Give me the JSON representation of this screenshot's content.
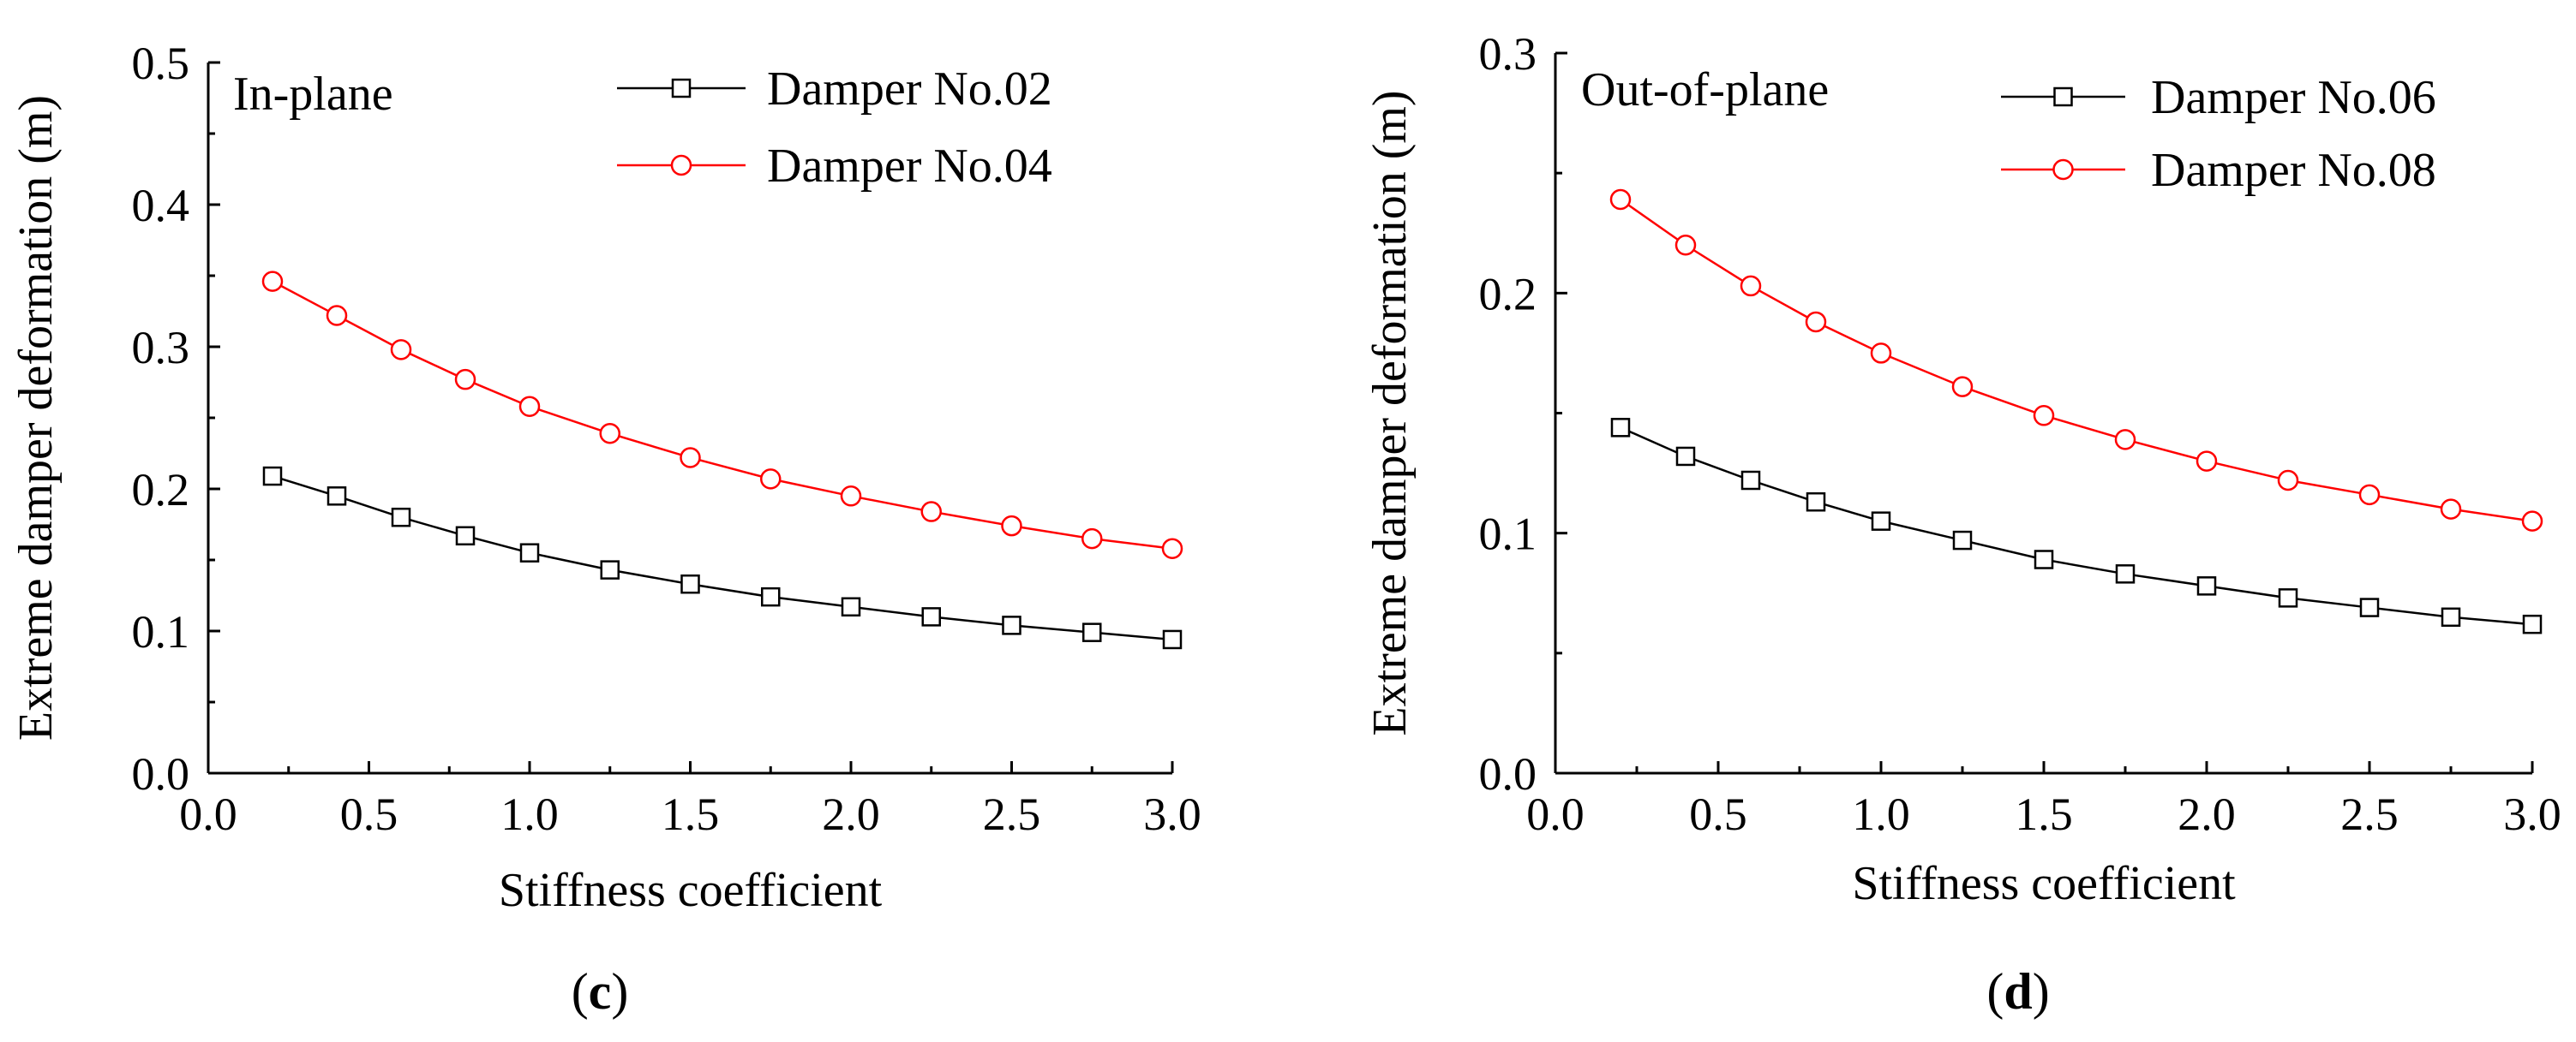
{
  "chart_data": [
    {
      "type": "line",
      "panel_label": "c",
      "title": "",
      "annotation": "In-plane",
      "xlabel": "Stiffness coefficient",
      "ylabel": "Extreme damper deformation (m)",
      "xlim": [
        0.0,
        3.0
      ],
      "ylim": [
        0.0,
        0.5
      ],
      "xticks": [
        "0.0",
        "0.5",
        "1.0",
        "1.5",
        "2.0",
        "2.5",
        "3.0"
      ],
      "yticks": [
        "0.0",
        "0.1",
        "0.2",
        "0.3",
        "0.4",
        "0.5"
      ],
      "grid": false,
      "legend_position": "top-right",
      "x": [
        0.2,
        0.4,
        0.6,
        0.8,
        1.0,
        1.25,
        1.5,
        1.75,
        2.0,
        2.25,
        2.5,
        2.75,
        3.0
      ],
      "series": [
        {
          "name": "Damper No.02",
          "color": "#000000",
          "marker": "square",
          "values": [
            0.209,
            0.195,
            0.18,
            0.167,
            0.155,
            0.143,
            0.133,
            0.124,
            0.117,
            0.11,
            0.104,
            0.099,
            0.094
          ]
        },
        {
          "name": "Damper No.04",
          "color": "#ff0000",
          "marker": "circle",
          "values": [
            0.346,
            0.322,
            0.298,
            0.277,
            0.258,
            0.239,
            0.222,
            0.207,
            0.195,
            0.184,
            0.174,
            0.165,
            0.158
          ]
        }
      ]
    },
    {
      "type": "line",
      "panel_label": "d",
      "title": "",
      "annotation": "Out-of-plane",
      "xlabel": "Stiffness coefficient",
      "ylabel": "Extreme damper deformation (m)",
      "xlim": [
        0.0,
        3.0
      ],
      "ylim": [
        0.0,
        0.3
      ],
      "xticks": [
        "0.0",
        "0.5",
        "1.0",
        "1.5",
        "2.0",
        "2.5",
        "3.0"
      ],
      "yticks": [
        "0.0",
        "0.1",
        "0.2",
        "0.3"
      ],
      "grid": false,
      "legend_position": "top-right",
      "x": [
        0.2,
        0.4,
        0.6,
        0.8,
        1.0,
        1.25,
        1.5,
        1.75,
        2.0,
        2.25,
        2.5,
        2.75,
        3.0
      ],
      "series": [
        {
          "name": "Damper No.06",
          "color": "#000000",
          "marker": "square",
          "values": [
            0.144,
            0.132,
            0.122,
            0.113,
            0.105,
            0.097,
            0.089,
            0.083,
            0.078,
            0.073,
            0.069,
            0.065,
            0.062
          ]
        },
        {
          "name": "Damper No.08",
          "color": "#ff0000",
          "marker": "circle",
          "values": [
            0.239,
            0.22,
            0.203,
            0.188,
            0.175,
            0.161,
            0.149,
            0.139,
            0.13,
            0.122,
            0.116,
            0.11,
            0.105
          ]
        }
      ]
    }
  ]
}
